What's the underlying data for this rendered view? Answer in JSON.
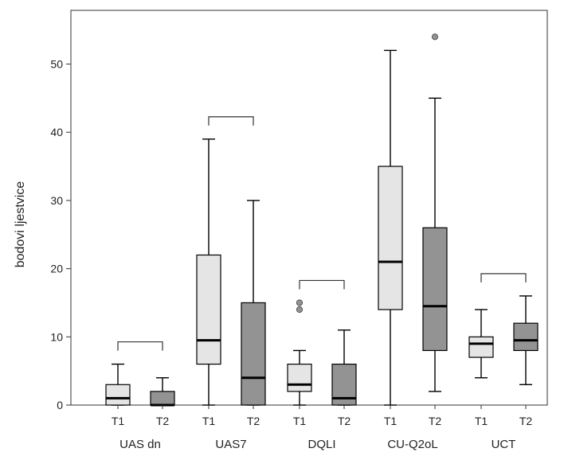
{
  "chart_data": {
    "type": "boxplot",
    "title": "",
    "xlabel": "",
    "ylabel": "bodovi ljestvice",
    "ylim": [
      0,
      56
    ],
    "yticks": [
      0,
      10,
      20,
      30,
      40,
      50
    ],
    "grid": false,
    "colors": {
      "T1": "#e5e5e5",
      "T2": "#939393",
      "outline": "#000000",
      "outlier": "#939393"
    },
    "groups": [
      {
        "name": "UAS dn",
        "bracket": true,
        "boxes": [
          {
            "label": "T1",
            "min": 0,
            "q1": 0,
            "median": 1,
            "q3": 3,
            "max": 6,
            "outliers": []
          },
          {
            "label": "T2",
            "min": 0,
            "q1": 0,
            "median": 0,
            "q3": 2,
            "max": 4,
            "outliers": []
          }
        ]
      },
      {
        "name": "UAS7",
        "bracket": true,
        "boxes": [
          {
            "label": "T1",
            "min": 0,
            "q1": 6,
            "median": 9.5,
            "q3": 22,
            "max": 39,
            "outliers": []
          },
          {
            "label": "T2",
            "min": 0,
            "q1": 0,
            "median": 4,
            "q3": 15,
            "max": 30,
            "outliers": []
          }
        ]
      },
      {
        "name": "DQLI",
        "bracket": true,
        "boxes": [
          {
            "label": "T1",
            "min": 0,
            "q1": 2,
            "median": 3,
            "q3": 6,
            "max": 8,
            "outliers": [
              14,
              15
            ]
          },
          {
            "label": "T2",
            "min": 0,
            "q1": 0,
            "median": 1,
            "q3": 6,
            "max": 11,
            "outliers": []
          }
        ]
      },
      {
        "name": "CU-Q2oL",
        "bracket": false,
        "boxes": [
          {
            "label": "T1",
            "min": 0,
            "q1": 14,
            "median": 21,
            "q3": 35,
            "max": 52,
            "outliers": []
          },
          {
            "label": "T2",
            "min": 2,
            "q1": 8,
            "median": 14.5,
            "q3": 26,
            "max": 45,
            "outliers": [
              54
            ]
          }
        ]
      },
      {
        "name": "UCT",
        "bracket": true,
        "boxes": [
          {
            "label": "T1",
            "min": 4,
            "q1": 7,
            "median": 9,
            "q3": 10,
            "max": 14,
            "outliers": []
          },
          {
            "label": "T2",
            "min": 3,
            "q1": 8,
            "median": 9.5,
            "q3": 12,
            "max": 16,
            "outliers": []
          }
        ]
      }
    ]
  }
}
